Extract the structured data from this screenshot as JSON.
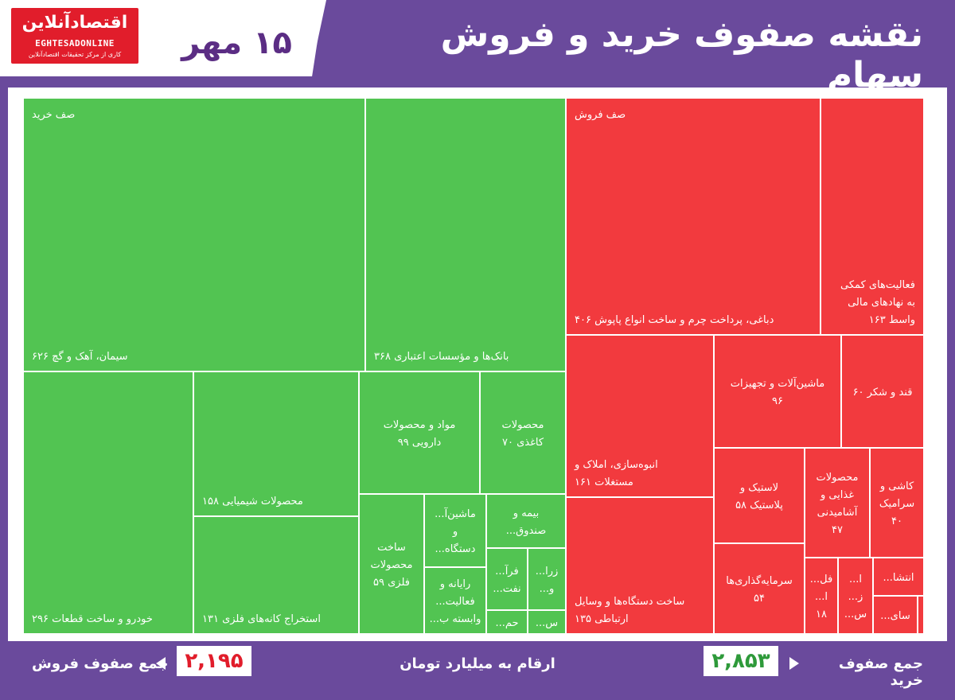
{
  "header": {
    "title": "نقشه صفوف خرید و فروش سهام",
    "date": "۱۵ مهر",
    "logo": {
      "name": "اقتصادآنلاین",
      "latin": "EGHTESADONLINE",
      "tagline": "کاری از مرکز تحقیقات اقتصادآنلاین"
    }
  },
  "footer": {
    "sell_total_label": "جمع صفوف فروش",
    "sell_total_value": "۲,۱۹۵",
    "units_note": "ارقام به میلیارد تومان",
    "buy_total_label": "جمع صفوف خرید",
    "buy_total_value": "۲,۸۵۳"
  },
  "colors": {
    "buy": "#52c452",
    "sell": "#f23a3e",
    "frame": "#6a4a9c",
    "date_text": "#5b2d84",
    "buy_value": "#2e9a3a",
    "sell_value": "#e11d2b"
  },
  "chart_data": {
    "type": "treemap",
    "unit": "میلیارد تومان",
    "groups": [
      {
        "name": "صف خرید",
        "color": "#52c452",
        "cells": [
          {
            "label": [
              "سیمان، آهک و گچ ۶۲۶"
            ],
            "value": 626
          },
          {
            "label": [
              "بانک‌ها و مؤسسات اعتباری ۳۶۸"
            ],
            "value": 368
          },
          {
            "label": [
              "خودرو و ساخت قطعات ۲۹۶"
            ],
            "value": 296
          },
          {
            "label": [
              "محصولات شیمیایی ۱۵۸"
            ],
            "value": 158
          },
          {
            "label": [
              "استخراج کانه‌های فلزی ۱۳۱"
            ],
            "value": 131
          },
          {
            "label": [
              "مواد و محصولات",
              "دارویی ۹۹"
            ],
            "value": 99
          },
          {
            "label": [
              "محصولات",
              "کاغذی ۷۰"
            ],
            "value": 70
          },
          {
            "label": [
              "ساخت",
              "محصولات",
              "فلزی ۵۹"
            ],
            "value": 59
          },
          {
            "label": [
              "ماشین‌آ...",
              "و",
              "دستگاه..."
            ],
            "value": null
          },
          {
            "label": [
              "بیمه و",
              "صندوق..."
            ],
            "value": null
          },
          {
            "label": [
              "رایانه و",
              "فعالیت...",
              "وابسته ب..."
            ],
            "value": null
          },
          {
            "label": [
              "فرآ...",
              "نفت..."
            ],
            "value": null
          },
          {
            "label": [
              "زرا...",
              "و..."
            ],
            "value": null
          },
          {
            "label": [
              "حم..."
            ],
            "value": null
          },
          {
            "label": [
              "س..."
            ],
            "value": null
          },
          {
            "label": [],
            "value": null
          }
        ]
      },
      {
        "name": "صف فروش",
        "color": "#f23a3e",
        "cells": [
          {
            "label": [
              "دباغی، پرداخت چرم و ساخت انواع پاپوش ۴۰۶"
            ],
            "value": 406
          },
          {
            "label": [
              "فعالیت‌های کمکی",
              "به نهادهای مالی",
              "واسط ۱۶۳"
            ],
            "value": 163
          },
          {
            "label": [
              "انبوه‌سازی، املاک و",
              "مستغلات ۱۶۱"
            ],
            "value": 161
          },
          {
            "label": [
              "ماشین‌آلات و تجهیزات",
              "۹۶"
            ],
            "value": 96
          },
          {
            "label": [
              "قند و شکر ۶۰"
            ],
            "value": 60
          },
          {
            "label": [
              "ساخت دستگاه‌ها و وسایل",
              "ارتباطی ۱۳۵"
            ],
            "value": 135
          },
          {
            "label": [
              "لاستیک و",
              "پلاستیک ۵۸"
            ],
            "value": 58
          },
          {
            "label": [
              "محصولات",
              "غذایی و",
              "آشامیدنی",
              "۴۷"
            ],
            "value": 47
          },
          {
            "label": [
              "کاشی و",
              "سرامیک",
              "۴۰"
            ],
            "value": 40
          },
          {
            "label": [
              "سرمایه‌گذاری‌ها",
              "۵۴"
            ],
            "value": 54
          },
          {
            "label": [
              "فل...",
              "ا...",
              "۱۸"
            ],
            "value": 18
          },
          {
            "label": [
              "ا...",
              "ز...",
              "س..."
            ],
            "value": null
          },
          {
            "label": [
              "انتشا..."
            ],
            "value": null
          },
          {
            "label": [
              "سای..."
            ],
            "value": null
          },
          {
            "label": [],
            "value": null
          }
        ]
      }
    ]
  }
}
